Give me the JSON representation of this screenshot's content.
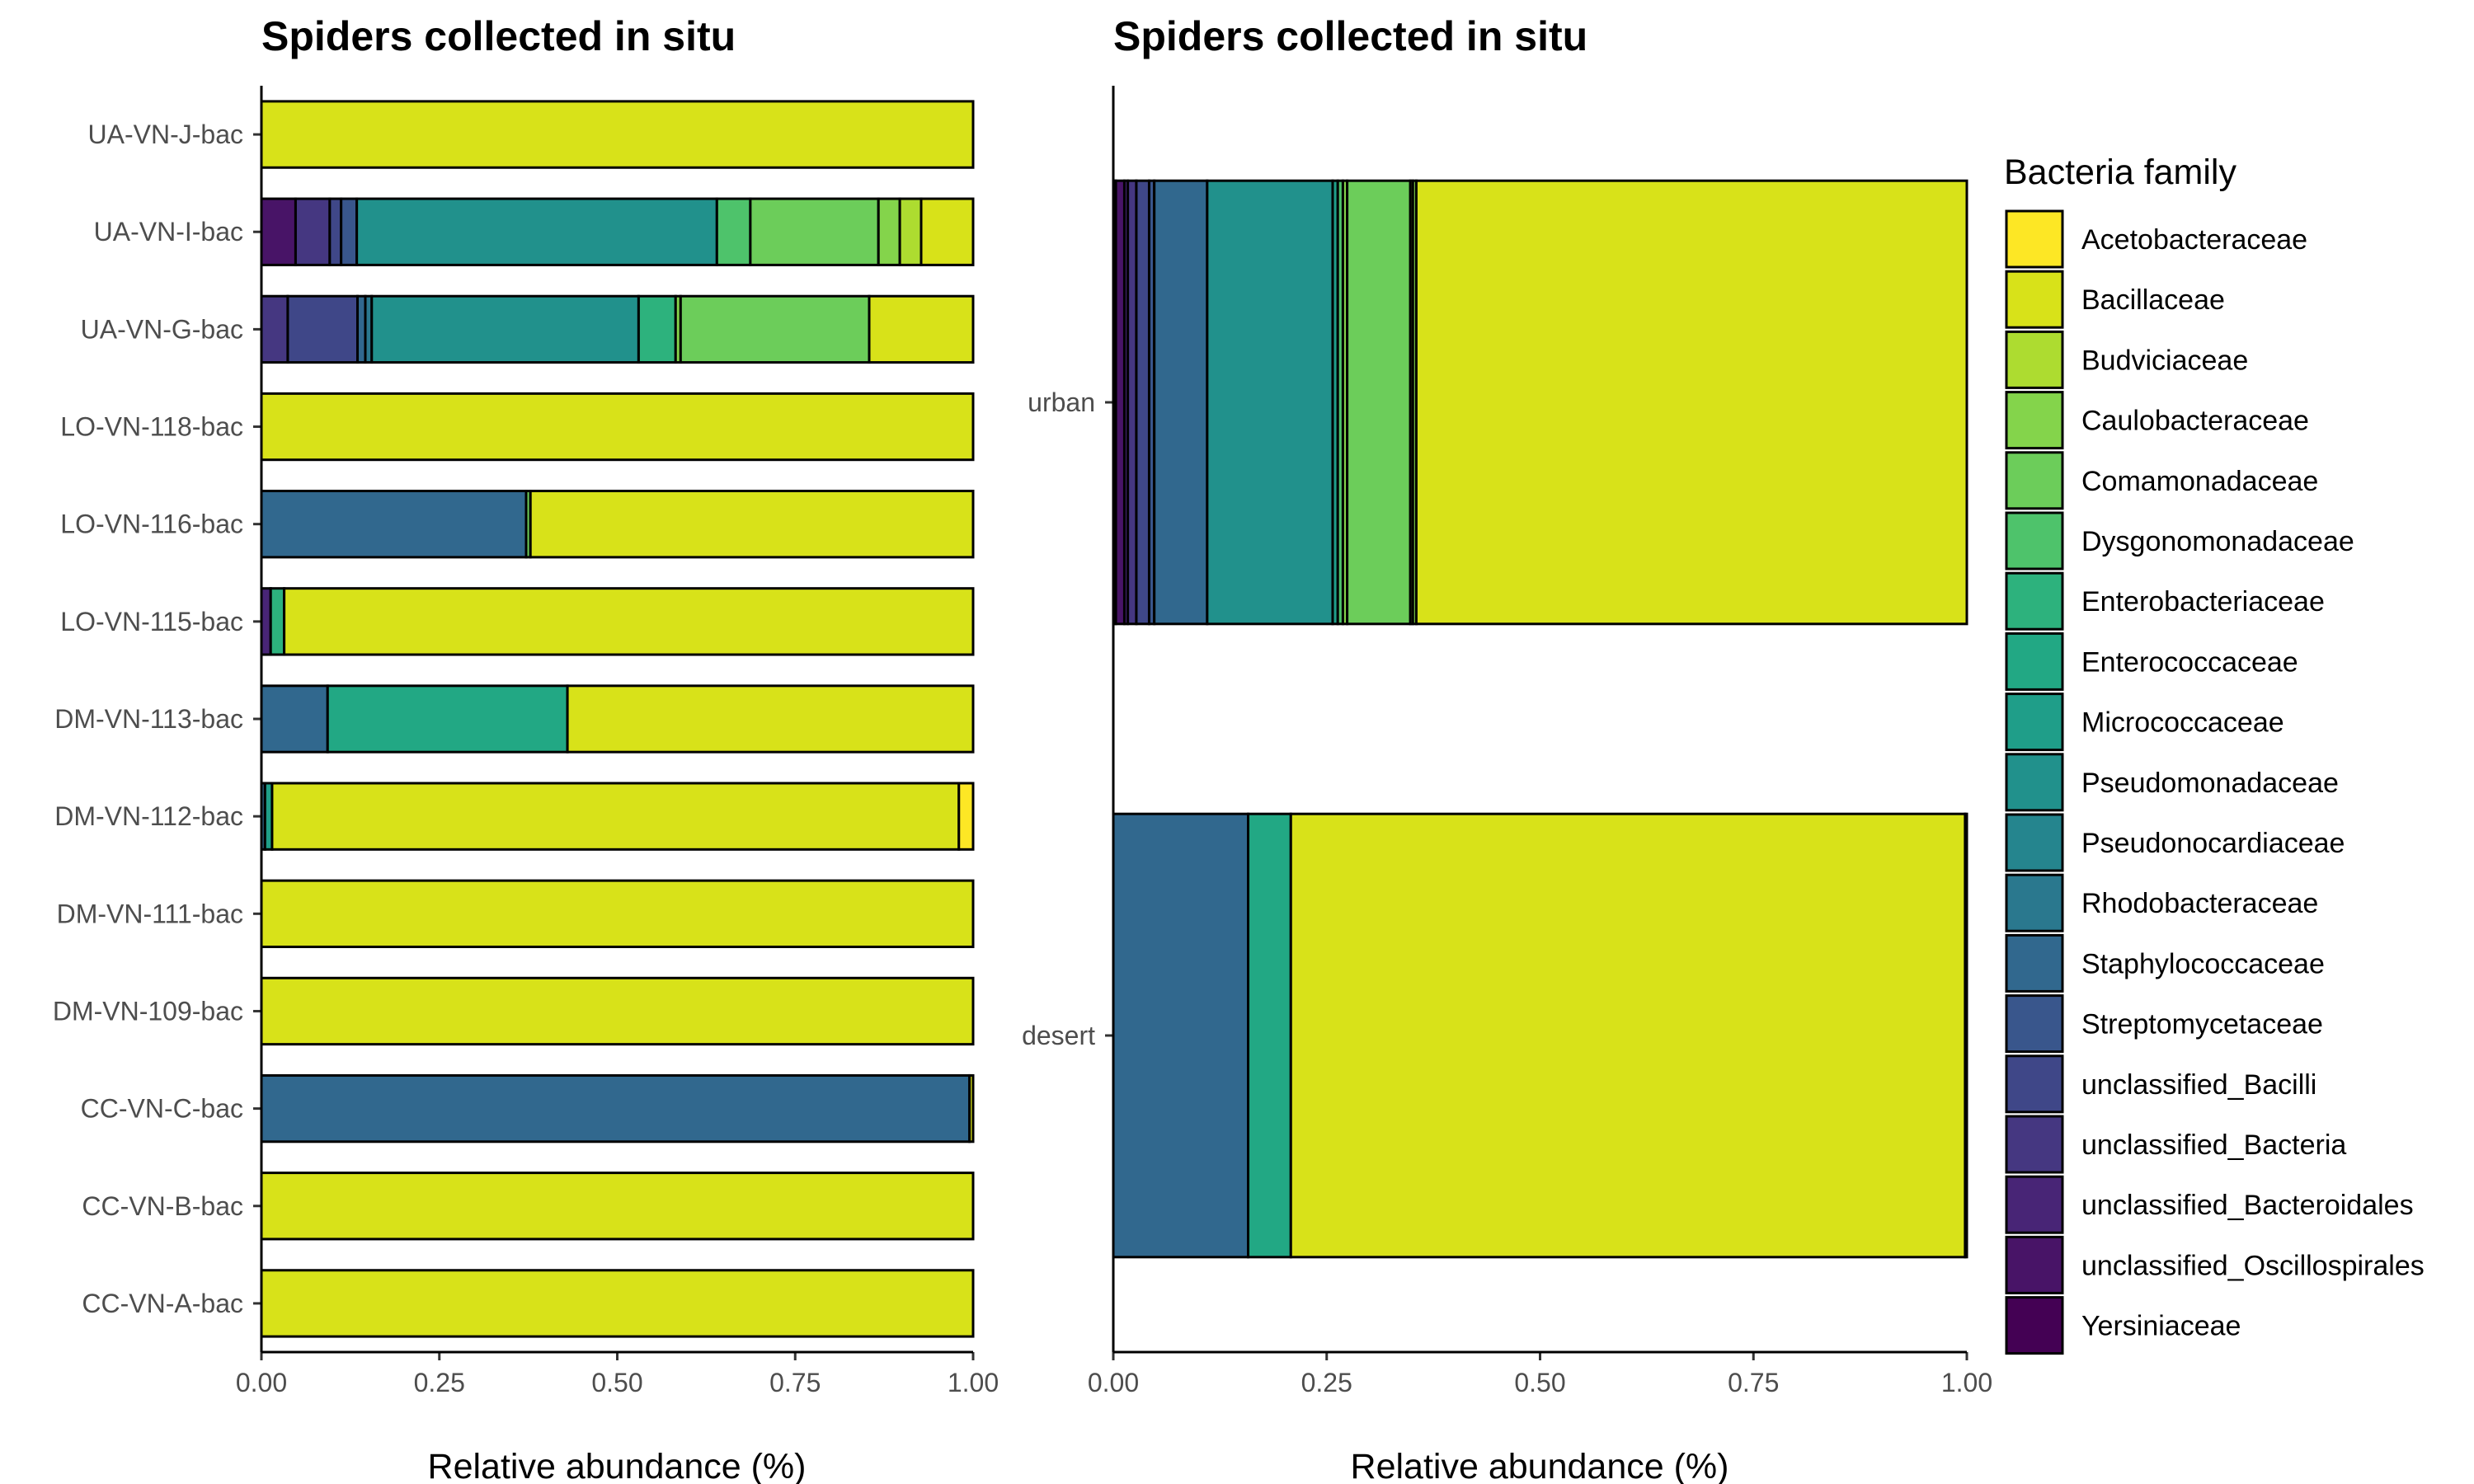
{
  "chart_data": [
    {
      "type": "bar",
      "orientation": "horizontal",
      "stacked": true,
      "title": "Spiders collected in situ",
      "xlabel": "Relative abundance (%)",
      "ylabel": "",
      "xlim": [
        0,
        1
      ],
      "x_ticks": [
        "0.00",
        "0.25",
        "0.50",
        "0.75",
        "1.00"
      ],
      "categories": [
        "CC-VN-A-bac",
        "CC-VN-B-bac",
        "CC-VN-C-bac",
        "DM-VN-109-bac",
        "DM-VN-111-bac",
        "DM-VN-112-bac",
        "DM-VN-113-bac",
        "LO-VN-115-bac",
        "LO-VN-116-bac",
        "LO-VN-118-bac",
        "UA-VN-G-bac",
        "UA-VN-I-bac",
        "UA-VN-J-bac"
      ],
      "bars": [
        {
          "category": "CC-VN-A-bac",
          "segments": [
            {
              "family": "Bacillaceae",
              "value": 1.0
            }
          ]
        },
        {
          "category": "CC-VN-B-bac",
          "segments": [
            {
              "family": "Bacillaceae",
              "value": 1.0
            }
          ]
        },
        {
          "category": "CC-VN-C-bac",
          "segments": [
            {
              "family": "Staphylococcaceae",
              "value": 0.995
            },
            {
              "family": "Bacillaceae",
              "value": 0.005
            }
          ]
        },
        {
          "category": "DM-VN-109-bac",
          "segments": [
            {
              "family": "Bacillaceae",
              "value": 1.0
            }
          ]
        },
        {
          "category": "DM-VN-111-bac",
          "segments": [
            {
              "family": "Bacillaceae",
              "value": 1.0
            }
          ]
        },
        {
          "category": "DM-VN-112-bac",
          "segments": [
            {
              "family": "Staphylococcaceae",
              "value": 0.005
            },
            {
              "family": "Micrococcaceae",
              "value": 0.01
            },
            {
              "family": "Bacillaceae",
              "value": 0.965
            },
            {
              "family": "Acetobacteraceae",
              "value": 0.02
            }
          ]
        },
        {
          "category": "DM-VN-113-bac",
          "segments": [
            {
              "family": "Staphylococcaceae",
              "value": 0.093
            },
            {
              "family": "Enterococcaceae",
              "value": 0.337
            },
            {
              "family": "Bacillaceae",
              "value": 0.57
            }
          ]
        },
        {
          "category": "LO-VN-115-bac",
          "segments": [
            {
              "family": "unclassified_Bacteroidales",
              "value": 0.013
            },
            {
              "family": "Enterobacteriaceae",
              "value": 0.019
            },
            {
              "family": "Bacillaceae",
              "value": 0.968
            }
          ]
        },
        {
          "category": "LO-VN-116-bac",
          "segments": [
            {
              "family": "Staphylococcaceae",
              "value": 0.372
            },
            {
              "family": "Comamonadaceae",
              "value": 0.006
            },
            {
              "family": "Bacillaceae",
              "value": 0.622
            }
          ]
        },
        {
          "category": "LO-VN-118-bac",
          "segments": [
            {
              "family": "Bacillaceae",
              "value": 1.0
            }
          ]
        },
        {
          "category": "UA-VN-G-bac",
          "segments": [
            {
              "family": "unclassified_Bacteria",
              "value": 0.037
            },
            {
              "family": "unclassified_Bacilli",
              "value": 0.098
            },
            {
              "family": "Staphylococcaceae",
              "value": 0.011
            },
            {
              "family": "Rhodobacteraceae",
              "value": 0.009
            },
            {
              "family": "Pseudomonadaceae",
              "value": 0.375
            },
            {
              "family": "Enterobacteriaceae",
              "value": 0.052
            },
            {
              "family": "Caulobacteraceae",
              "value": 0.007
            },
            {
              "family": "Comamonadaceae",
              "value": 0.265
            },
            {
              "family": "Bacillaceae",
              "value": 0.146
            }
          ]
        },
        {
          "category": "UA-VN-I-bac",
          "segments": [
            {
              "family": "unclassified_Oscillospirales",
              "value": 0.048
            },
            {
              "family": "unclassified_Bacteria",
              "value": 0.048
            },
            {
              "family": "unclassified_Bacilli",
              "value": 0.016
            },
            {
              "family": "Streptomycetaceae",
              "value": 0.022
            },
            {
              "family": "Pseudomonadaceae",
              "value": 0.506
            },
            {
              "family": "Dysgonomonadaceae",
              "value": 0.047
            },
            {
              "family": "Comamonadaceae",
              "value": 0.18
            },
            {
              "family": "Caulobacteraceae",
              "value": 0.03
            },
            {
              "family": "Budviciaceae",
              "value": 0.03
            },
            {
              "family": "Bacillaceae",
              "value": 0.073
            }
          ]
        },
        {
          "category": "UA-VN-J-bac",
          "segments": [
            {
              "family": "Bacillaceae",
              "value": 1.0
            }
          ]
        }
      ]
    },
    {
      "type": "bar",
      "orientation": "horizontal",
      "stacked": true,
      "title": "Spiders collected in situ",
      "xlabel": "Relative abundance (%)",
      "ylabel": "",
      "xlim": [
        0,
        1
      ],
      "x_ticks": [
        "0.00",
        "0.25",
        "0.50",
        "0.75",
        "1.00"
      ],
      "categories": [
        "desert",
        "urban"
      ],
      "bars": [
        {
          "category": "desert",
          "segments": [
            {
              "family": "Staphylococcaceae",
              "value": 0.158
            },
            {
              "family": "Enterococcaceae",
              "value": 0.05
            },
            {
              "family": "Bacillaceae",
              "value": 0.79
            },
            {
              "family": "Acetobacteraceae",
              "value": 0.002
            }
          ]
        },
        {
          "category": "urban",
          "segments": [
            {
              "family": "Yersiniaceae",
              "value": 0.003
            },
            {
              "family": "unclassified_Oscillospirales",
              "value": 0.01
            },
            {
              "family": "unclassified_Bacteroidales",
              "value": 0.004
            },
            {
              "family": "unclassified_Bacteria",
              "value": 0.01
            },
            {
              "family": "unclassified_Bacilli",
              "value": 0.015
            },
            {
              "family": "Streptomycetaceae",
              "value": 0.006
            },
            {
              "family": "Staphylococcaceae",
              "value": 0.062
            },
            {
              "family": "Pseudomonadaceae",
              "value": 0.147
            },
            {
              "family": "Micrococcaceae",
              "value": 0.006
            },
            {
              "family": "Dysgonomonadaceae",
              "value": 0.006
            },
            {
              "family": "Caulobacteraceae",
              "value": 0.005
            },
            {
              "family": "Comamonadaceae",
              "value": 0.074
            },
            {
              "family": "Budviciaceae",
              "value": 0.003
            },
            {
              "family": "Caulobacteraceae",
              "value": 0.004
            },
            {
              "family": "Bacillaceae",
              "value": 0.645
            }
          ]
        }
      ]
    }
  ],
  "legend": {
    "title": "Bacteria family",
    "placement": "right",
    "items": [
      {
        "label": "Acetobacteraceae",
        "color": "#fde725"
      },
      {
        "label": "Bacillaceae",
        "color": "#d8e219"
      },
      {
        "label": "Budviciaceae",
        "color": "#addc30"
      },
      {
        "label": "Caulobacteraceae",
        "color": "#84d44b"
      },
      {
        "label": "Comamonadaceae",
        "color": "#6ccd5a"
      },
      {
        "label": "Dysgonomonadaceae",
        "color": "#4ec36b"
      },
      {
        "label": "Enterobacteriaceae",
        "color": "#2db27d"
      },
      {
        "label": "Enterococcaceae",
        "color": "#22a884"
      },
      {
        "label": "Micrococcaceae",
        "color": "#1f9e89"
      },
      {
        "label": "Pseudomonadaceae",
        "color": "#21918c"
      },
      {
        "label": "Pseudonocardiaceae",
        "color": "#25858e"
      },
      {
        "label": "Rhodobacteraceae",
        "color": "#2a788e"
      },
      {
        "label": "Staphylococcaceae",
        "color": "#31688e"
      },
      {
        "label": "Streptomycetaceae",
        "color": "#39568c"
      },
      {
        "label": "unclassified_Bacilli",
        "color": "#3f4788"
      },
      {
        "label": "unclassified_Bacteria",
        "color": "#453781"
      },
      {
        "label": "unclassified_Bacteroidales",
        "color": "#482576"
      },
      {
        "label": "unclassified_Oscillospirales",
        "color": "#481467"
      },
      {
        "label": "Yersiniaceae",
        "color": "#440154"
      }
    ]
  }
}
